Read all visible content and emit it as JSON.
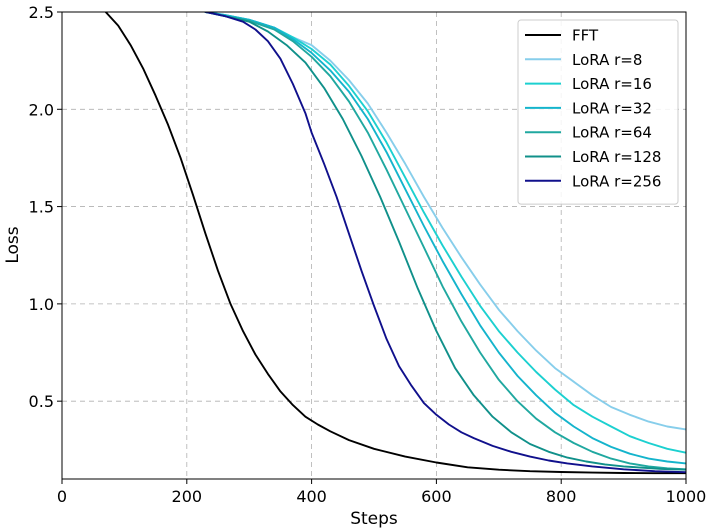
{
  "chart_data": {
    "type": "line",
    "title": "",
    "xlabel": "Steps",
    "ylabel": "Loss",
    "xlim": [
      0,
      1000
    ],
    "ylim": [
      0.1,
      2.5
    ],
    "xticks": [
      0,
      200,
      400,
      600,
      800,
      1000
    ],
    "xtick_labels": [
      "0",
      "200",
      "400",
      "600",
      "800",
      "1000"
    ],
    "yticks": [
      0.5,
      1.0,
      1.5,
      2.0,
      2.5
    ],
    "ytick_labels": [
      "0.5",
      "1.0",
      "1.5",
      "2.0",
      "2.5"
    ],
    "grid": true,
    "legend_position": "top-right",
    "series": [
      {
        "name": "FFT",
        "color": "#000000",
        "x": [
          70,
          90,
          110,
          130,
          150,
          170,
          190,
          210,
          230,
          250,
          270,
          290,
          310,
          330,
          350,
          370,
          390,
          410,
          430,
          460,
          500,
          550,
          600,
          650,
          700,
          750,
          800,
          850,
          900,
          950,
          1000
        ],
        "y": [
          2.5,
          2.43,
          2.33,
          2.21,
          2.07,
          1.92,
          1.75,
          1.56,
          1.36,
          1.17,
          1.0,
          0.86,
          0.74,
          0.64,
          0.55,
          0.48,
          0.42,
          0.38,
          0.345,
          0.3,
          0.255,
          0.215,
          0.185,
          0.16,
          0.148,
          0.14,
          0.136,
          0.133,
          0.131,
          0.13,
          0.13
        ]
      },
      {
        "name": "LoRA r=8",
        "color": "#87ceeb",
        "x": [
          230,
          260,
          300,
          340,
          370,
          400,
          430,
          460,
          490,
          520,
          550,
          580,
          610,
          640,
          670,
          700,
          730,
          760,
          790,
          820,
          850,
          880,
          910,
          940,
          970,
          1000
        ],
        "y": [
          2.5,
          2.485,
          2.46,
          2.42,
          2.37,
          2.33,
          2.25,
          2.15,
          2.03,
          1.88,
          1.72,
          1.55,
          1.39,
          1.24,
          1.1,
          0.97,
          0.86,
          0.76,
          0.67,
          0.6,
          0.53,
          0.47,
          0.43,
          0.395,
          0.37,
          0.355
        ]
      },
      {
        "name": "LoRA r=16",
        "color": "#1cd0d0",
        "x": [
          230,
          260,
          300,
          340,
          370,
          400,
          430,
          460,
          490,
          520,
          550,
          580,
          610,
          640,
          670,
          700,
          730,
          760,
          790,
          820,
          850,
          880,
          910,
          940,
          970,
          1000
        ],
        "y": [
          2.5,
          2.485,
          2.46,
          2.42,
          2.37,
          2.31,
          2.23,
          2.12,
          1.99,
          1.83,
          1.65,
          1.47,
          1.3,
          1.14,
          0.99,
          0.86,
          0.75,
          0.65,
          0.56,
          0.48,
          0.42,
          0.37,
          0.32,
          0.285,
          0.255,
          0.235
        ]
      },
      {
        "name": "LoRA r=32",
        "color": "#14b4cc",
        "x": [
          230,
          260,
          300,
          340,
          370,
          400,
          430,
          460,
          490,
          520,
          550,
          580,
          610,
          640,
          670,
          700,
          730,
          760,
          790,
          820,
          850,
          880,
          910,
          940,
          970,
          1000
        ],
        "y": [
          2.5,
          2.485,
          2.46,
          2.42,
          2.36,
          2.29,
          2.2,
          2.09,
          1.95,
          1.78,
          1.59,
          1.4,
          1.22,
          1.05,
          0.89,
          0.75,
          0.63,
          0.53,
          0.44,
          0.37,
          0.31,
          0.265,
          0.23,
          0.205,
          0.19,
          0.18
        ]
      },
      {
        "name": "LoRA r=64",
        "color": "#20a8a0",
        "x": [
          230,
          260,
          300,
          340,
          370,
          400,
          430,
          460,
          490,
          520,
          550,
          580,
          610,
          640,
          670,
          700,
          730,
          760,
          790,
          820,
          850,
          880,
          910,
          940,
          970,
          1000
        ],
        "y": [
          2.5,
          2.48,
          2.455,
          2.41,
          2.35,
          2.27,
          2.17,
          2.04,
          1.88,
          1.69,
          1.49,
          1.29,
          1.09,
          0.91,
          0.75,
          0.61,
          0.5,
          0.41,
          0.34,
          0.285,
          0.24,
          0.205,
          0.18,
          0.165,
          0.155,
          0.15
        ]
      },
      {
        "name": "LoRA r=128",
        "color": "#10908a",
        "x": [
          230,
          260,
          300,
          330,
          360,
          390,
          420,
          450,
          480,
          510,
          540,
          570,
          600,
          630,
          660,
          690,
          720,
          750,
          780,
          810,
          840,
          870,
          900,
          930,
          960,
          1000
        ],
        "y": [
          2.5,
          2.48,
          2.45,
          2.4,
          2.33,
          2.24,
          2.11,
          1.95,
          1.76,
          1.55,
          1.32,
          1.08,
          0.86,
          0.67,
          0.53,
          0.42,
          0.34,
          0.28,
          0.24,
          0.21,
          0.19,
          0.175,
          0.165,
          0.158,
          0.152,
          0.148
        ]
      },
      {
        "name": "LoRA r=256",
        "color": "#10108c",
        "x": [
          230,
          260,
          290,
          310,
          330,
          350,
          370,
          390,
          400,
          420,
          440,
          460,
          480,
          500,
          520,
          540,
          560,
          580,
          600,
          620,
          640,
          660,
          690,
          720,
          750,
          780,
          810,
          850,
          900,
          950,
          1000
        ],
        "y": [
          2.5,
          2.48,
          2.45,
          2.41,
          2.35,
          2.26,
          2.13,
          1.98,
          1.88,
          1.72,
          1.55,
          1.36,
          1.17,
          0.99,
          0.82,
          0.68,
          0.58,
          0.49,
          0.43,
          0.38,
          0.34,
          0.31,
          0.27,
          0.24,
          0.215,
          0.195,
          0.18,
          0.165,
          0.15,
          0.14,
          0.135
        ]
      }
    ]
  }
}
